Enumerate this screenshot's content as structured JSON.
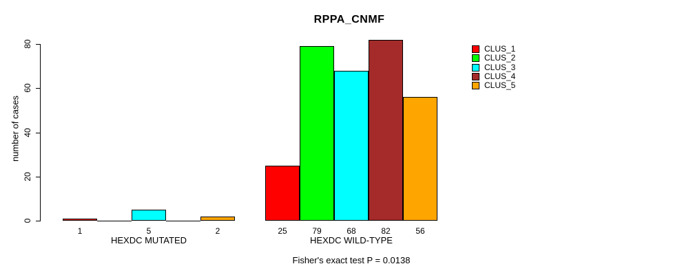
{
  "title": "RPPA_CNMF",
  "chart_data": {
    "type": "bar",
    "title": "RPPA_CNMF",
    "xlabel": "",
    "ylabel": "number of cases",
    "ylim": [
      0,
      82
    ],
    "yticks": [
      0,
      20,
      40,
      60,
      80
    ],
    "grid": false,
    "legend_position": "right-outside",
    "series_names": [
      "CLUS_1",
      "CLUS_2",
      "CLUS_3",
      "CLUS_4",
      "CLUS_5"
    ],
    "series_colors": [
      "#FF0000",
      "#00FF00",
      "#00FFFF",
      "#A52A2A",
      "#FFA500"
    ],
    "groups": [
      {
        "label": "HEXDC MUTATED",
        "values": [
          1,
          0,
          5,
          0,
          2
        ]
      },
      {
        "label": "HEXDC WILD-TYPE",
        "values": [
          25,
          79,
          68,
          82,
          56
        ]
      }
    ],
    "bar_value_labels": [
      [
        "1",
        "",
        "5",
        "",
        "2"
      ],
      [
        "25",
        "79",
        "68",
        "82",
        "56"
      ]
    ],
    "annotation": "Fisher's exact test P = 0.0138"
  }
}
